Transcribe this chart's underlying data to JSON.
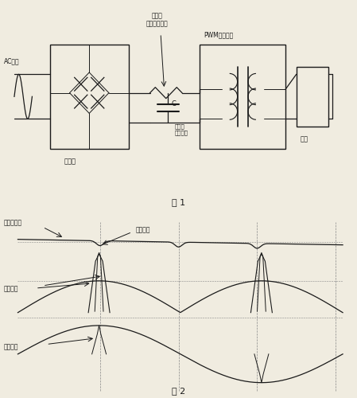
{
  "fig1_label": "图 1",
  "fig2_label": "图 2",
  "ac_input_label": "AC输入",
  "rectifier_label": "整流器",
  "cap_label": "C",
  "large_cap_label": "大容量\n滤波电容",
  "pwm_label": "PWM开关电源",
  "load_label": "负载",
  "dc_after_rect_label": "整流后\n电容上的直流",
  "rectified_dc_label": "整流后直流",
  "waveform_drop_label": "波形下落",
  "grid_voltage_label": "线路电压",
  "grid_current_label": "线路电流",
  "bg_color": "#f0ece0",
  "line_color": "#1a1a1a",
  "grid_color": "#888888"
}
